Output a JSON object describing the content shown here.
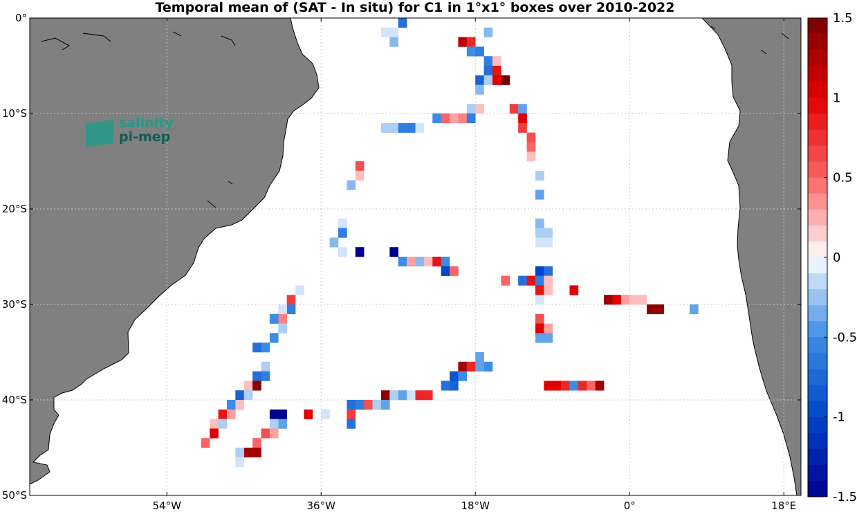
{
  "chart_data": {
    "type": "heatmap",
    "title": "Temporal mean of (SAT - In situ) for C1 in 1°x1° boxes over 2010-2022",
    "xlim": [
      -70,
      20
    ],
    "ylim": [
      -50,
      0
    ],
    "x_ticks": [
      {
        "value": -54,
        "label": "54°W"
      },
      {
        "value": -36,
        "label": "36°W"
      },
      {
        "value": -18,
        "label": "18°W"
      },
      {
        "value": 0,
        "label": "0°"
      },
      {
        "value": 18,
        "label": "18°E"
      }
    ],
    "y_ticks": [
      {
        "value": 0,
        "label": "0°"
      },
      {
        "value": -10,
        "label": "10°S"
      },
      {
        "value": -20,
        "label": "20°S"
      },
      {
        "value": -30,
        "label": "30°S"
      },
      {
        "value": -40,
        "label": "40°S"
      },
      {
        "value": -50,
        "label": "50°S"
      }
    ],
    "grid": true,
    "colorbar": {
      "range": [
        -1.5,
        1.5
      ],
      "step": 0.1,
      "ticks": [
        {
          "value": 1.5,
          "label": "1.5"
        },
        {
          "value": 1,
          "label": "1"
        },
        {
          "value": 0.5,
          "label": "0.5"
        },
        {
          "value": 0,
          "label": "0"
        },
        {
          "value": -0.5,
          "label": "-0.5"
        },
        {
          "value": -1,
          "label": "-1"
        },
        {
          "value": -1.5,
          "label": "-1.5"
        }
      ]
    },
    "cells": [
      [
        -26.5,
        -0.5,
        -0.7
      ],
      [
        -27.5,
        -1.5,
        -0.1
      ],
      [
        -28.5,
        -1.5,
        -0.1
      ],
      [
        -27.5,
        -2.5,
        -0.3
      ],
      [
        -16.5,
        -1.5,
        -0.3
      ],
      [
        -19.5,
        -2.5,
        1.2
      ],
      [
        -18.5,
        -2.5,
        0.8
      ],
      [
        -18.5,
        -3.5,
        -0.5
      ],
      [
        -17.5,
        -3.5,
        -0.6
      ],
      [
        -16.5,
        -4.5,
        -0.6
      ],
      [
        -15.5,
        -4.5,
        0.2
      ],
      [
        -16.5,
        -5.5,
        -0.7
      ],
      [
        -15.5,
        -5.5,
        0.9
      ],
      [
        -17.5,
        -6.5,
        -0.8
      ],
      [
        -16.5,
        -6.5,
        -0.2
      ],
      [
        -15.5,
        -6.5,
        1.0
      ],
      [
        -14.5,
        -6.5,
        1.5
      ],
      [
        -17.5,
        -7.5,
        -0.3
      ],
      [
        -18.5,
        -9.5,
        -0.2
      ],
      [
        -17.5,
        -9.5,
        0.2
      ],
      [
        -13.5,
        -9.5,
        0.7
      ],
      [
        -12.5,
        -9.5,
        -0.4
      ],
      [
        -22.5,
        -10.5,
        -0.5
      ],
      [
        -21.5,
        -10.5,
        0.5
      ],
      [
        -20.5,
        -10.5,
        0.3
      ],
      [
        -19.5,
        -10.5,
        0.4
      ],
      [
        -18.5,
        -10.5,
        -0.6
      ],
      [
        -12.5,
        -10.5,
        1.0
      ],
      [
        -28.5,
        -11.5,
        -0.2
      ],
      [
        -27.5,
        -11.5,
        -0.2
      ],
      [
        -26.5,
        -11.5,
        -0.6
      ],
      [
        -25.5,
        -11.5,
        -0.6
      ],
      [
        -24.5,
        -11.5,
        -0.1
      ],
      [
        -12.5,
        -11.5,
        0.7
      ],
      [
        -11.5,
        -12.5,
        0.6
      ],
      [
        -11.5,
        -13.5,
        0.5
      ],
      [
        -11.5,
        -14.5,
        0.2
      ],
      [
        -31.5,
        -15.5,
        0.6
      ],
      [
        -31.5,
        -16.5,
        0.2
      ],
      [
        -32.5,
        -17.5,
        -0.3
      ],
      [
        -10.5,
        -16.5,
        -0.2
      ],
      [
        -10.5,
        -18.5,
        -0.4
      ],
      [
        -33.5,
        -21.5,
        -0.1
      ],
      [
        -10.5,
        -21.5,
        -0.3
      ],
      [
        -33.5,
        -22.5,
        -0.6
      ],
      [
        -10.5,
        -22.5,
        -0.2
      ],
      [
        -9.5,
        -22.5,
        -0.2
      ],
      [
        -34.5,
        -23.5,
        -0.3
      ],
      [
        -10.5,
        -23.5,
        -0.1
      ],
      [
        -9.5,
        -23.5,
        -0.1
      ],
      [
        -33.5,
        -24.5,
        -0.1
      ],
      [
        -31.5,
        -24.5,
        -1.5
      ],
      [
        -27.5,
        -24.5,
        -1.5
      ],
      [
        -26.5,
        -25.5,
        -0.5
      ],
      [
        -25.5,
        -25.5,
        0.3
      ],
      [
        -24.5,
        -25.5,
        -0.3
      ],
      [
        -23.5,
        -25.5,
        0.2
      ],
      [
        -22.5,
        -25.5,
        0.9
      ],
      [
        -21.5,
        -25.5,
        -0.5
      ],
      [
        -21.5,
        -26.5,
        -1.0
      ],
      [
        -20.5,
        -26.5,
        0.5
      ],
      [
        -10.5,
        -26.5,
        -1.0
      ],
      [
        -9.5,
        -26.5,
        -0.7
      ],
      [
        -14.5,
        -27.5,
        0.5
      ],
      [
        -12.5,
        -27.5,
        -0.7
      ],
      [
        -11.5,
        -27.5,
        0.9
      ],
      [
        -10.5,
        -27.5,
        -0.6
      ],
      [
        -9.5,
        -27.5,
        0.2
      ],
      [
        -10.5,
        -28.5,
        0.9
      ],
      [
        -9.5,
        -28.5,
        0.2
      ],
      [
        -6.5,
        -28.5,
        1.0
      ],
      [
        -2.5,
        -29.5,
        1.3
      ],
      [
        -1.5,
        -29.5,
        1.0
      ],
      [
        -0.5,
        -29.5,
        0.3
      ],
      [
        0.5,
        -29.5,
        0.2
      ],
      [
        1.5,
        -29.5,
        0.2
      ],
      [
        -10.5,
        -29.5,
        -0.1
      ],
      [
        2.5,
        -30.5,
        1.4
      ],
      [
        3.5,
        -30.5,
        1.4
      ],
      [
        7.5,
        -30.5,
        -0.4
      ],
      [
        -10.5,
        -31.5,
        0.6
      ],
      [
        -10.5,
        -32.5,
        1.0
      ],
      [
        -9.5,
        -32.5,
        0.3
      ],
      [
        -10.5,
        -33.5,
        -0.4
      ],
      [
        -9.5,
        -33.5,
        -0.4
      ],
      [
        -38.5,
        -28.5,
        -0.1
      ],
      [
        -39.5,
        -29.5,
        0.7
      ],
      [
        -39.5,
        -30.5,
        -0.6
      ],
      [
        -40.5,
        -30.5,
        -0.1
      ],
      [
        -40.5,
        -31.5,
        0.4
      ],
      [
        -41.5,
        -31.5,
        -0.5
      ],
      [
        -40.5,
        -32.5,
        -0.2
      ],
      [
        -41.5,
        -33.5,
        -0.5
      ],
      [
        -42.5,
        -34.5,
        -0.5
      ],
      [
        -43.5,
        -34.5,
        -0.7
      ],
      [
        -42.5,
        -36.5,
        -0.2
      ],
      [
        -43.5,
        -37.5,
        -0.7
      ],
      [
        -42.5,
        -37.5,
        -0.6
      ],
      [
        -44.5,
        -38.5,
        0.2
      ],
      [
        -43.5,
        -38.5,
        1.4
      ],
      [
        -45.5,
        -39.5,
        -0.8
      ],
      [
        -44.5,
        -39.5,
        -0.2
      ],
      [
        -46.5,
        -40.5,
        -0.5
      ],
      [
        -45.5,
        -40.5,
        0.2
      ],
      [
        -47.5,
        -41.5,
        0.9
      ],
      [
        -46.5,
        -41.5,
        0.3
      ],
      [
        -48.5,
        -42.5,
        0.2
      ],
      [
        -47.5,
        -42.5,
        -0.2
      ],
      [
        -48.5,
        -43.5,
        1.0
      ],
      [
        -49.5,
        -44.5,
        0.5
      ],
      [
        -40.5,
        -41.5,
        -1.5
      ],
      [
        -41.5,
        -41.5,
        -1.5
      ],
      [
        -40.5,
        -42.5,
        -0.4
      ],
      [
        -41.5,
        -42.5,
        -0.2
      ],
      [
        -37.5,
        -41.5,
        1.0
      ],
      [
        -35.5,
        -41.5,
        -0.1
      ],
      [
        -42.5,
        -43.5,
        0.6
      ],
      [
        -41.5,
        -43.5,
        0.3
      ],
      [
        -43.5,
        -44.5,
        0.5
      ],
      [
        -44.5,
        -45.5,
        1.3
      ],
      [
        -43.5,
        -45.5,
        1.3
      ],
      [
        -45.5,
        -45.5,
        -0.2
      ],
      [
        -45.5,
        -46.5,
        -0.1
      ],
      [
        -17.5,
        -35.5,
        -0.4
      ],
      [
        -19.5,
        -36.5,
        1.3
      ],
      [
        -18.5,
        -36.5,
        0.8
      ],
      [
        -17.5,
        -36.5,
        -0.4
      ],
      [
        -16.5,
        -36.5,
        -0.5
      ],
      [
        -20.5,
        -37.5,
        -0.9
      ],
      [
        -19.5,
        -37.5,
        -0.5
      ],
      [
        -21.5,
        -38.5,
        -0.7
      ],
      [
        -20.5,
        -38.5,
        -0.8
      ],
      [
        -28.5,
        -39.5,
        1.4
      ],
      [
        -27.5,
        -39.5,
        -0.2
      ],
      [
        -26.5,
        -39.5,
        -0.4
      ],
      [
        -25.5,
        -39.5,
        -0.1
      ],
      [
        -24.5,
        -39.5,
        0.8
      ],
      [
        -23.5,
        -39.5,
        0.8
      ],
      [
        -32.5,
        -40.5,
        -0.7
      ],
      [
        -31.5,
        -40.5,
        -0.6
      ],
      [
        -30.5,
        -40.5,
        0.6
      ],
      [
        -29.5,
        -40.5,
        -0.2
      ],
      [
        -28.5,
        -40.5,
        -0.4
      ],
      [
        -32.5,
        -41.5,
        0.7
      ],
      [
        -32.5,
        -42.5,
        -0.7
      ],
      [
        -9.5,
        -38.5,
        1.0
      ],
      [
        -8.5,
        -38.5,
        1.0
      ],
      [
        -7.5,
        -38.5,
        0.8
      ],
      [
        -6.5,
        -38.5,
        -0.5
      ],
      [
        -5.5,
        -38.5,
        0.8
      ],
      [
        -4.5,
        -38.5,
        0.5
      ],
      [
        -3.5,
        -38.5,
        1.3
      ]
    ]
  },
  "logo": {
    "line1": "salinity",
    "line2": "pi-mep"
  },
  "colors": {
    "land": "#808080",
    "ocean": "#ffffff",
    "logo_teal": "#1a9e8a",
    "logo_dark": "#0d5e56"
  }
}
